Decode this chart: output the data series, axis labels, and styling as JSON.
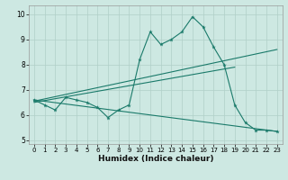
{
  "xlabel": "Humidex (Indice chaleur)",
  "ylabel": "",
  "xlim": [
    -0.5,
    23.5
  ],
  "ylim": [
    4.85,
    10.35
  ],
  "yticks": [
    5,
    6,
    7,
    8,
    9,
    10
  ],
  "xticks": [
    0,
    1,
    2,
    3,
    4,
    5,
    6,
    7,
    8,
    9,
    10,
    11,
    12,
    13,
    14,
    15,
    16,
    17,
    18,
    19,
    20,
    21,
    22,
    23
  ],
  "bg_color": "#cde8e2",
  "line_color": "#1a7a6a",
  "grid_color": "#b0cfc8",
  "line1_x": [
    0,
    1,
    2,
    3,
    4,
    5,
    6,
    7,
    8,
    9,
    10,
    11,
    12,
    13,
    14,
    15,
    16,
    17,
    18,
    19,
    20,
    21,
    22,
    23
  ],
  "line1_y": [
    6.6,
    6.4,
    6.2,
    6.7,
    6.6,
    6.5,
    6.3,
    5.9,
    6.2,
    6.4,
    8.2,
    9.3,
    8.8,
    9.0,
    9.3,
    9.9,
    9.5,
    8.7,
    8.0,
    6.4,
    5.7,
    5.4,
    5.4,
    5.35
  ],
  "line2_x": [
    0,
    23
  ],
  "line2_y": [
    6.6,
    5.35
  ],
  "line3_x": [
    0,
    19
  ],
  "line3_y": [
    6.5,
    7.9
  ],
  "line4_x": [
    0,
    23
  ],
  "line4_y": [
    6.55,
    8.6
  ]
}
